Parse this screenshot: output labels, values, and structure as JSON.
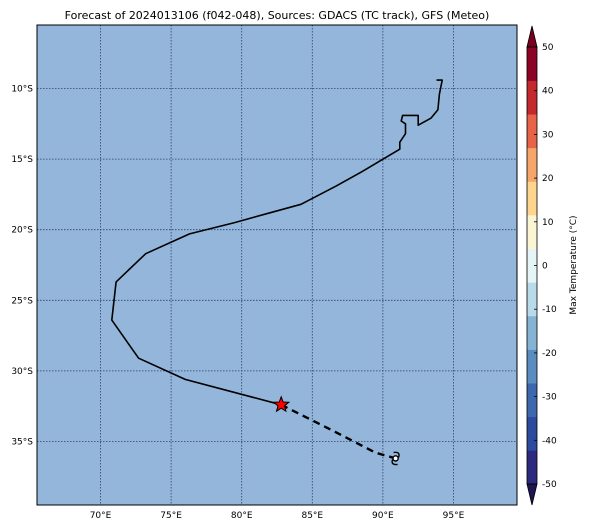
{
  "title": "Forecast of 2024013106 (f042-048), Sources: GDACS (TC track), GFS (Meteo)",
  "map": {
    "lon_range": [
      65.5,
      99.5
    ],
    "lat_range": [
      -39.5,
      -5.5
    ],
    "lon_ticks": [
      {
        "value": 70,
        "label": "70°E"
      },
      {
        "value": 75,
        "label": "75°E"
      },
      {
        "value": 80,
        "label": "80°E"
      },
      {
        "value": 85,
        "label": "85°E"
      },
      {
        "value": 90,
        "label": "90°E"
      },
      {
        "value": 95,
        "label": "95°E"
      }
    ],
    "lat_ticks": [
      {
        "value": -10,
        "label": "10°S"
      },
      {
        "value": -15,
        "label": "15°S"
      },
      {
        "value": -20,
        "label": "20°S"
      },
      {
        "value": -25,
        "label": "25°S"
      },
      {
        "value": -30,
        "label": "30°S"
      },
      {
        "value": -35,
        "label": "35°S"
      }
    ],
    "gridlines": true,
    "background_color": "#93b6da",
    "past_track": [
      [
        93.8,
        -9.4
      ],
      [
        94.2,
        -9.4
      ],
      [
        94.0,
        -10.4
      ],
      [
        93.9,
        -11.5
      ],
      [
        93.4,
        -12.1
      ],
      [
        92.5,
        -12.6
      ],
      [
        92.5,
        -11.9
      ],
      [
        92.0,
        -11.9
      ],
      [
        91.4,
        -11.9
      ],
      [
        91.3,
        -12.3
      ],
      [
        91.6,
        -12.5
      ],
      [
        91.6,
        -13.2
      ],
      [
        91.2,
        -13.8
      ],
      [
        91.2,
        -14.3
      ],
      [
        89.5,
        -15.3
      ],
      [
        88.5,
        -15.9
      ],
      [
        86.7,
        -16.9
      ],
      [
        84.2,
        -18.2
      ],
      [
        82.0,
        -18.8
      ],
      [
        79.5,
        -19.5
      ],
      [
        76.3,
        -20.3
      ],
      [
        73.2,
        -21.7
      ],
      [
        71.1,
        -23.7
      ],
      [
        70.8,
        -26.4
      ],
      [
        72.7,
        -29.1
      ],
      [
        76.0,
        -30.6
      ],
      [
        82.8,
        -32.4
      ]
    ],
    "forecast_track": [
      [
        82.8,
        -32.4
      ],
      [
        86.0,
        -34.0
      ],
      [
        89.5,
        -35.8
      ],
      [
        90.9,
        -36.2
      ]
    ],
    "current_position": [
      82.8,
      -32.4
    ],
    "forecast_end": [
      90.9,
      -36.2
    ],
    "marker_color": "#ff0000"
  },
  "colorbar": {
    "label": "Max Temperature (°C)",
    "ticks": [
      "-50",
      "-40",
      "-30",
      "-20",
      "-10",
      "0",
      "10",
      "20",
      "30",
      "40",
      "50"
    ],
    "colors": [
      "#2c2a7e",
      "#2d4b9e",
      "#3e68ae",
      "#5a8cc0",
      "#86b3d4",
      "#b9dbe9",
      "#e5f4f5",
      "#fcf5d4",
      "#fed48e",
      "#f6a66a",
      "#e7644a",
      "#c3292d",
      "#8b0426"
    ],
    "extend_low_color": "#1e1650",
    "extend_high_color": "#7a0020"
  }
}
